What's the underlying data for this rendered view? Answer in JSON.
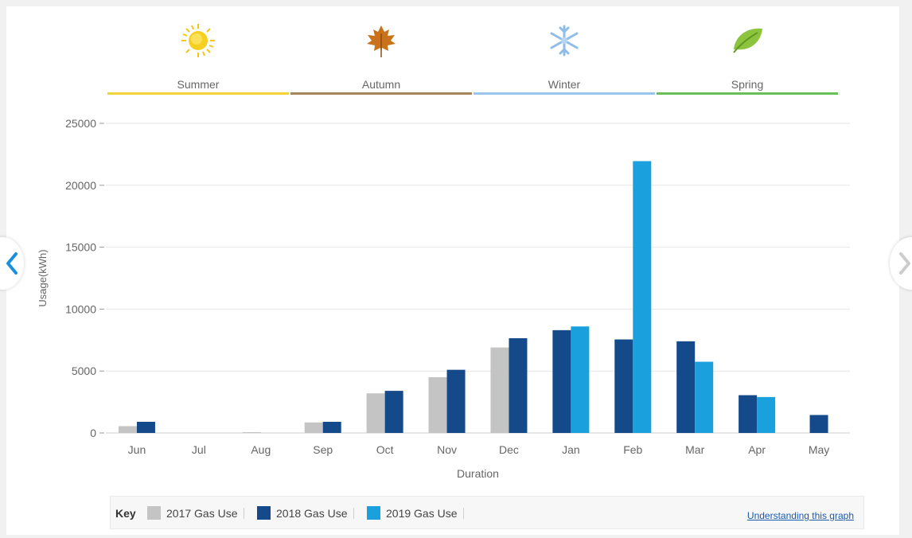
{
  "seasons": [
    {
      "label": "Summer",
      "icon": "sun-icon",
      "color": "#f2d33b"
    },
    {
      "label": "Autumn",
      "icon": "maple-leaf-icon",
      "color": "#a6855d"
    },
    {
      "label": "Winter",
      "icon": "snowflake-icon",
      "color": "#9ac5ec"
    },
    {
      "label": "Spring",
      "icon": "green-leaf-icon",
      "color": "#6bbf59"
    }
  ],
  "nav": {
    "prev_icon": "chevron-left-icon",
    "next_icon": "chevron-right-icon",
    "accent": "#1a8fde"
  },
  "key": {
    "label": "Key",
    "link": "Understanding this graph",
    "items": [
      {
        "label": "2017 Gas Use",
        "color": "#c4c4c4"
      },
      {
        "label": "2018 Gas Use",
        "color": "#154a8a"
      },
      {
        "label": "2019 Gas Use",
        "color": "#1ba0de"
      }
    ]
  },
  "chart_data": {
    "type": "bar",
    "title": "",
    "xlabel": "Duration",
    "ylabel": "Usage(kWh)",
    "ylim": [
      0,
      25000
    ],
    "yticks": [
      0,
      5000,
      10000,
      15000,
      20000,
      25000
    ],
    "grid": true,
    "categories": [
      "Jun",
      "Jul",
      "Aug",
      "Sep",
      "Oct",
      "Nov",
      "Dec",
      "Jan",
      "Feb",
      "Mar",
      "Apr",
      "May"
    ],
    "series": [
      {
        "name": "2017 Gas Use",
        "color": "#c4c4c4",
        "values": [
          550,
          0,
          60,
          850,
          3200,
          4500,
          6900,
          null,
          null,
          null,
          null,
          null
        ]
      },
      {
        "name": "2018 Gas Use",
        "color": "#154a8a",
        "values": [
          900,
          0,
          0,
          900,
          3400,
          5100,
          7650,
          8300,
          7550,
          7400,
          3050,
          1450
        ]
      },
      {
        "name": "2019 Gas Use",
        "color": "#1ba0de",
        "values": [
          null,
          null,
          null,
          null,
          null,
          null,
          null,
          8600,
          21950,
          5750,
          2900,
          null
        ]
      }
    ]
  }
}
